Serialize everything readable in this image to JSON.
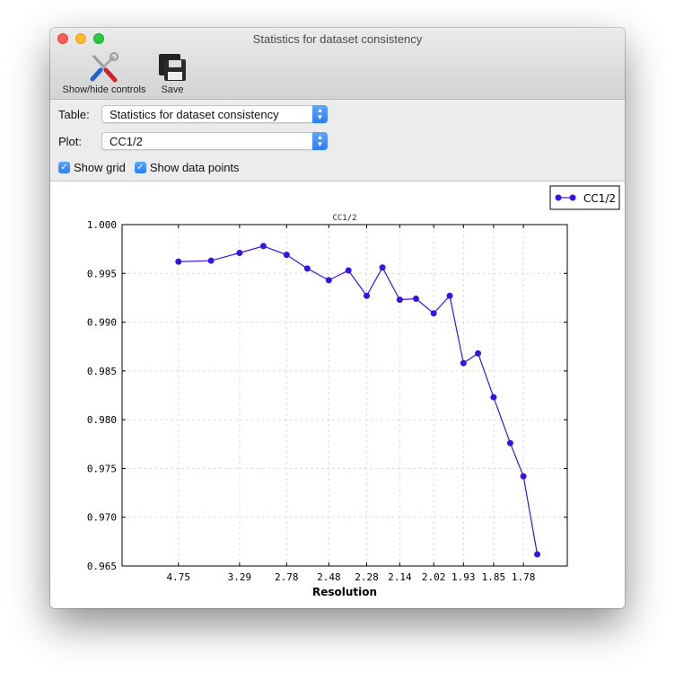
{
  "window": {
    "title": "Statistics for dataset consistency"
  },
  "toolbar": {
    "show_hide_label": "Show/hide controls",
    "save_label": "Save"
  },
  "controls": {
    "table_label": "Table:",
    "table_value": "Statistics for dataset consistency",
    "plot_label": "Plot:",
    "plot_value": "CC1/2",
    "show_grid_label": "Show grid",
    "show_grid_checked": true,
    "show_points_label": "Show data points",
    "show_points_checked": true
  },
  "colors": {
    "series": "#3a12e4",
    "accent": "#2f82f6"
  },
  "chart_data": {
    "type": "line",
    "title": "CC1/2",
    "xlabel": "Resolution",
    "ylabel": "",
    "x_scale": "inverse-square",
    "xlim": [
      "inf",
      1.69
    ],
    "ylim": [
      0.965,
      1.0
    ],
    "x_ticks": [
      4.75,
      3.29,
      2.78,
      2.48,
      2.28,
      2.14,
      2.02,
      1.93,
      1.85,
      1.78
    ],
    "x_tick_labels": [
      "4.75",
      "3.29",
      "2.78",
      "2.48",
      "2.28",
      "2.14",
      "2.02",
      "1.93",
      "1.85",
      "1.78"
    ],
    "y_ticks": [
      0.965,
      0.97,
      0.975,
      0.98,
      0.985,
      0.99,
      0.995,
      1.0
    ],
    "y_tick_labels": [
      "0.965",
      "0.970",
      "0.975",
      "0.980",
      "0.985",
      "0.990",
      "0.995",
      "1.000"
    ],
    "grid": true,
    "legend": "top-right",
    "series": [
      {
        "name": "CC1/2",
        "x": [
          4.75,
          3.78,
          3.29,
          3.0,
          2.78,
          2.62,
          2.48,
          2.37,
          2.28,
          2.21,
          2.14,
          2.08,
          2.02,
          1.97,
          1.93,
          1.89,
          1.85,
          1.81,
          1.78,
          1.75
        ],
        "y": [
          0.9962,
          0.9963,
          0.9971,
          0.9978,
          0.9969,
          0.9955,
          0.9943,
          0.9953,
          0.9927,
          0.9956,
          0.9923,
          0.9924,
          0.9909,
          0.9927,
          0.9858,
          0.9868,
          0.9823,
          0.9776,
          0.9742,
          0.9662
        ]
      }
    ]
  }
}
